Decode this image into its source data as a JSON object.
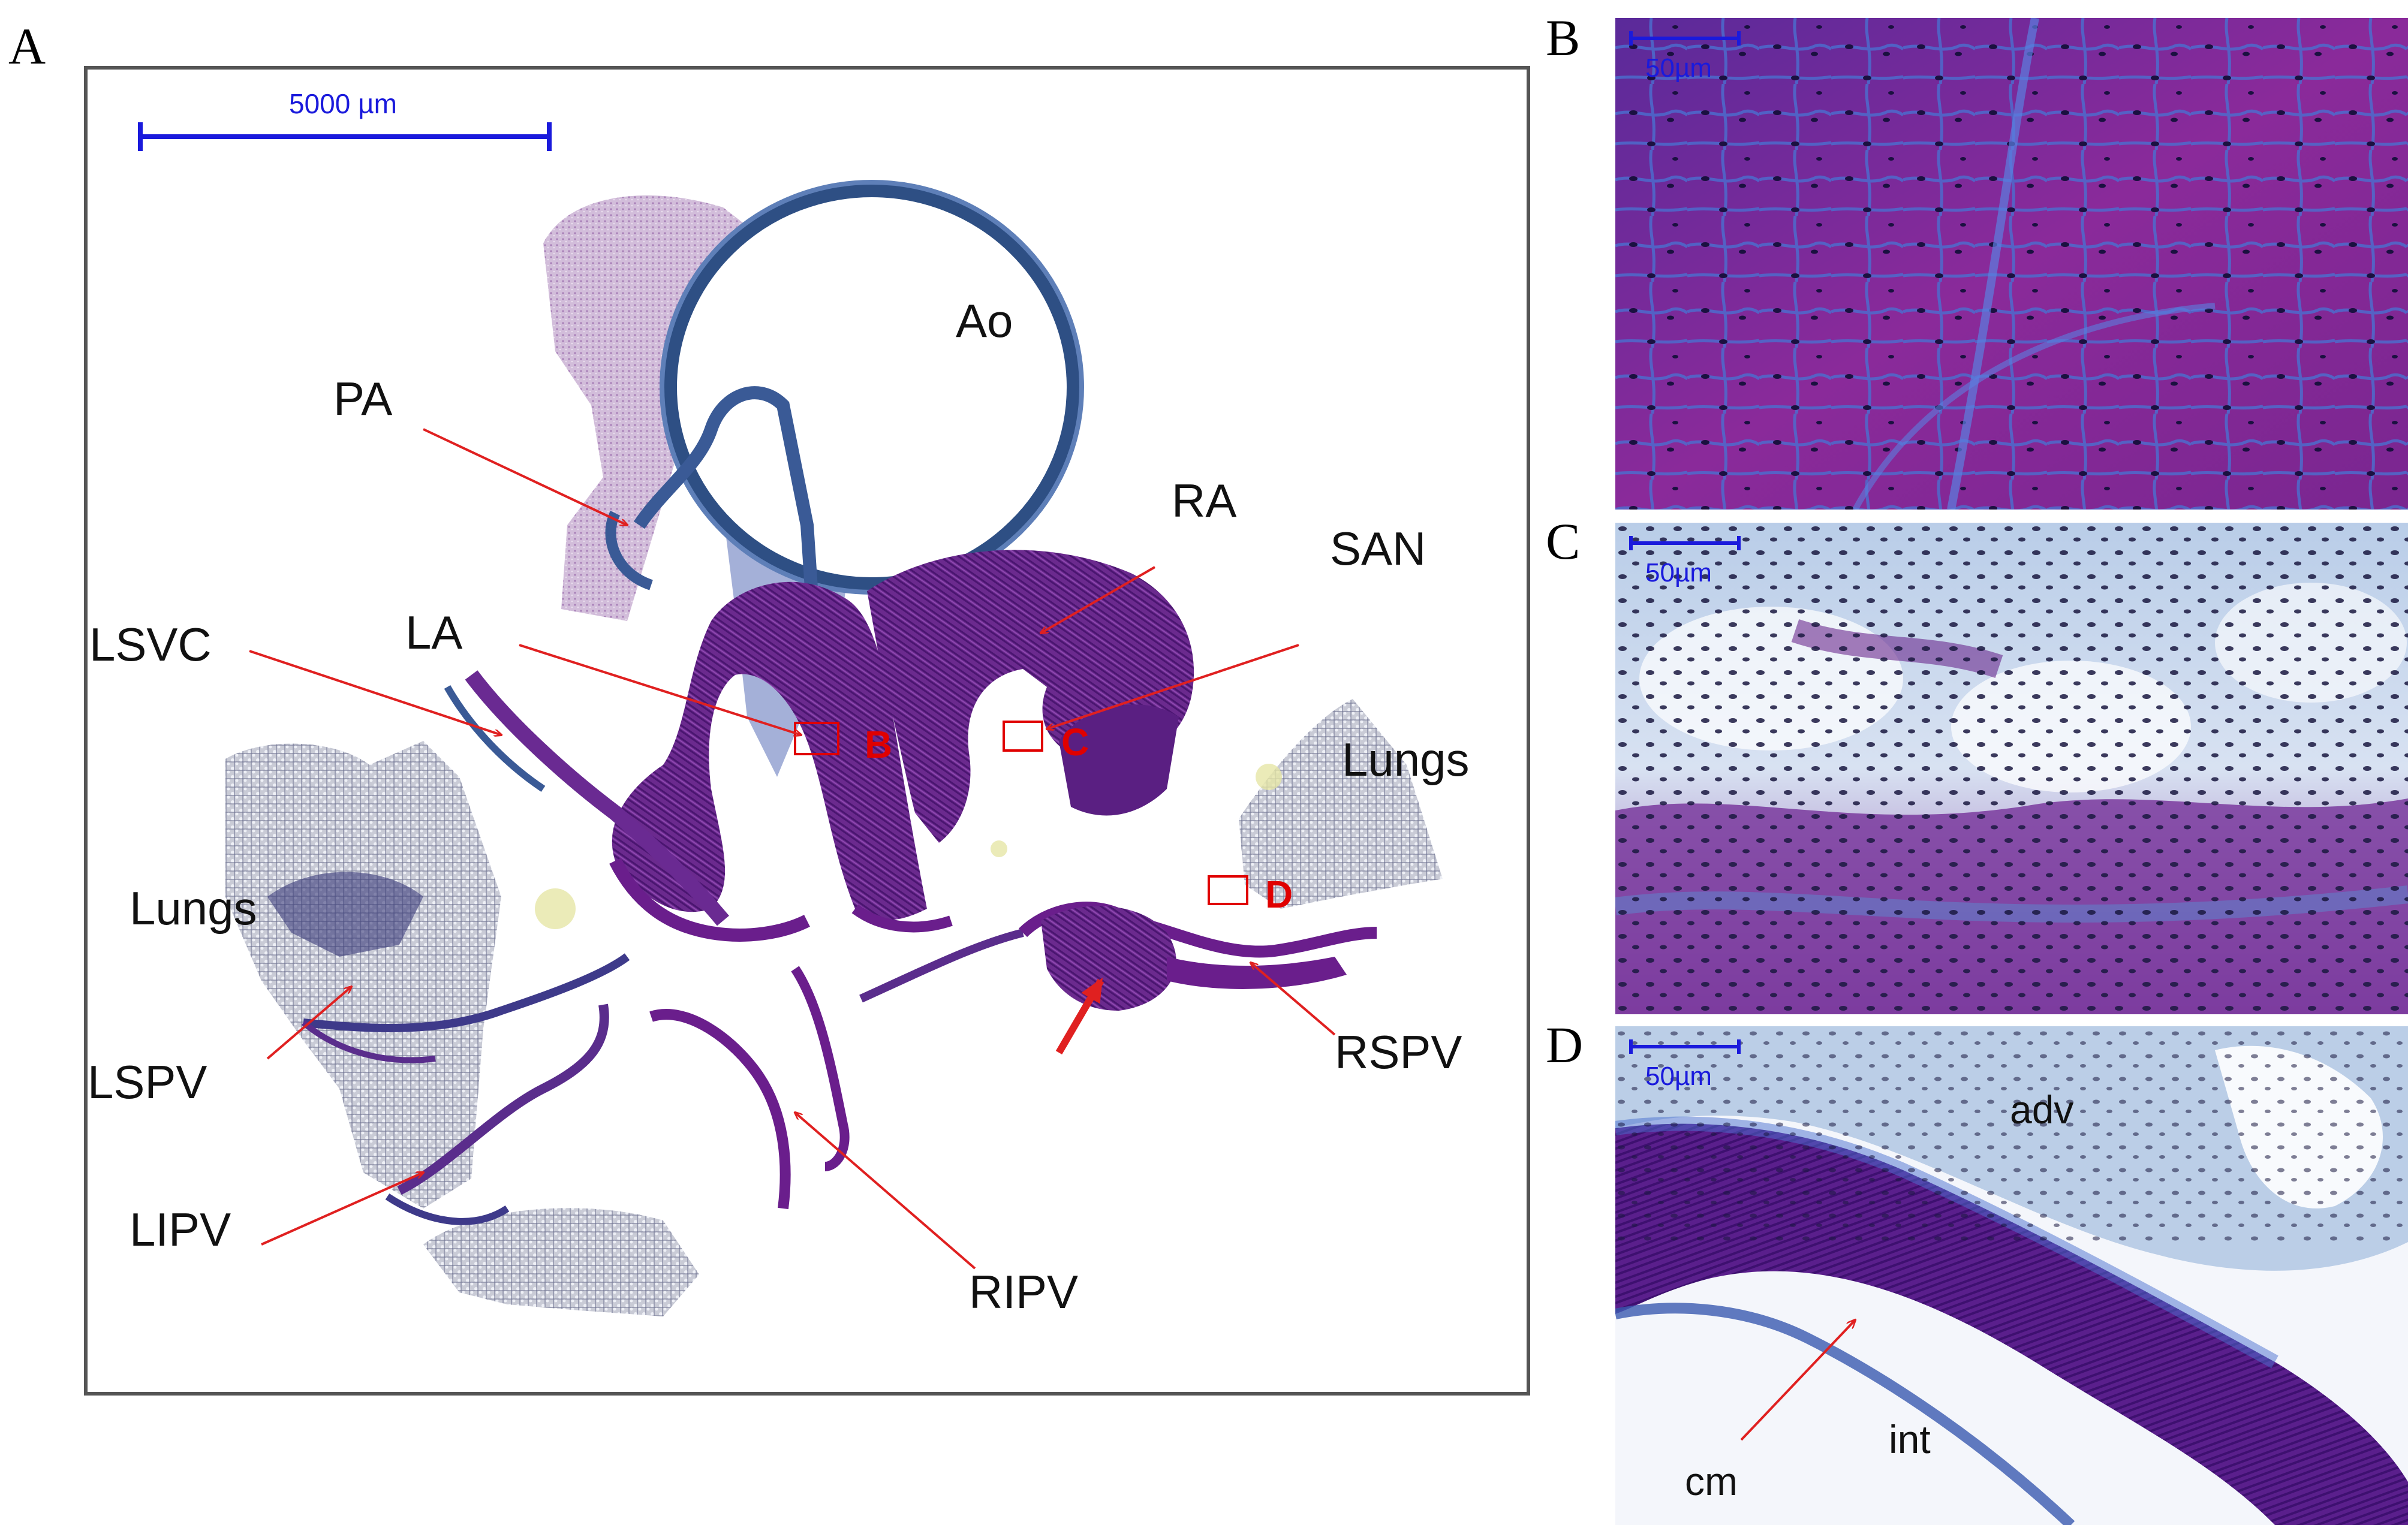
{
  "panels": {
    "a": "A",
    "b": "B",
    "c": "C",
    "d": "D"
  },
  "panel_a": {
    "scale_bar": "5000 µm",
    "labels": {
      "ao": "Ao",
      "pa": "PA",
      "ra": "RA",
      "san": "SAN",
      "lsvc": "LSVC",
      "la": "LA",
      "lungs_right": "Lungs",
      "lungs_left": "Lungs",
      "lspv": "LSPV",
      "lipv": "LIPV",
      "ripv": "RIPV",
      "rspv": "RSPV"
    },
    "boxes": {
      "b": "B",
      "c": "C",
      "d": "D"
    }
  },
  "panel_b": {
    "scale_bar": "50µm"
  },
  "panel_c": {
    "scale_bar": "50µm"
  },
  "panel_d": {
    "scale_bar": "50µm",
    "labels": {
      "adv": "adv",
      "int": "int",
      "cm": "cm"
    }
  },
  "colors": {
    "arrow": "#e02020",
    "scale_bar": "#1a1adc",
    "stain_purple": "#6a1e8c",
    "stain_blue": "#3a5ab0"
  }
}
